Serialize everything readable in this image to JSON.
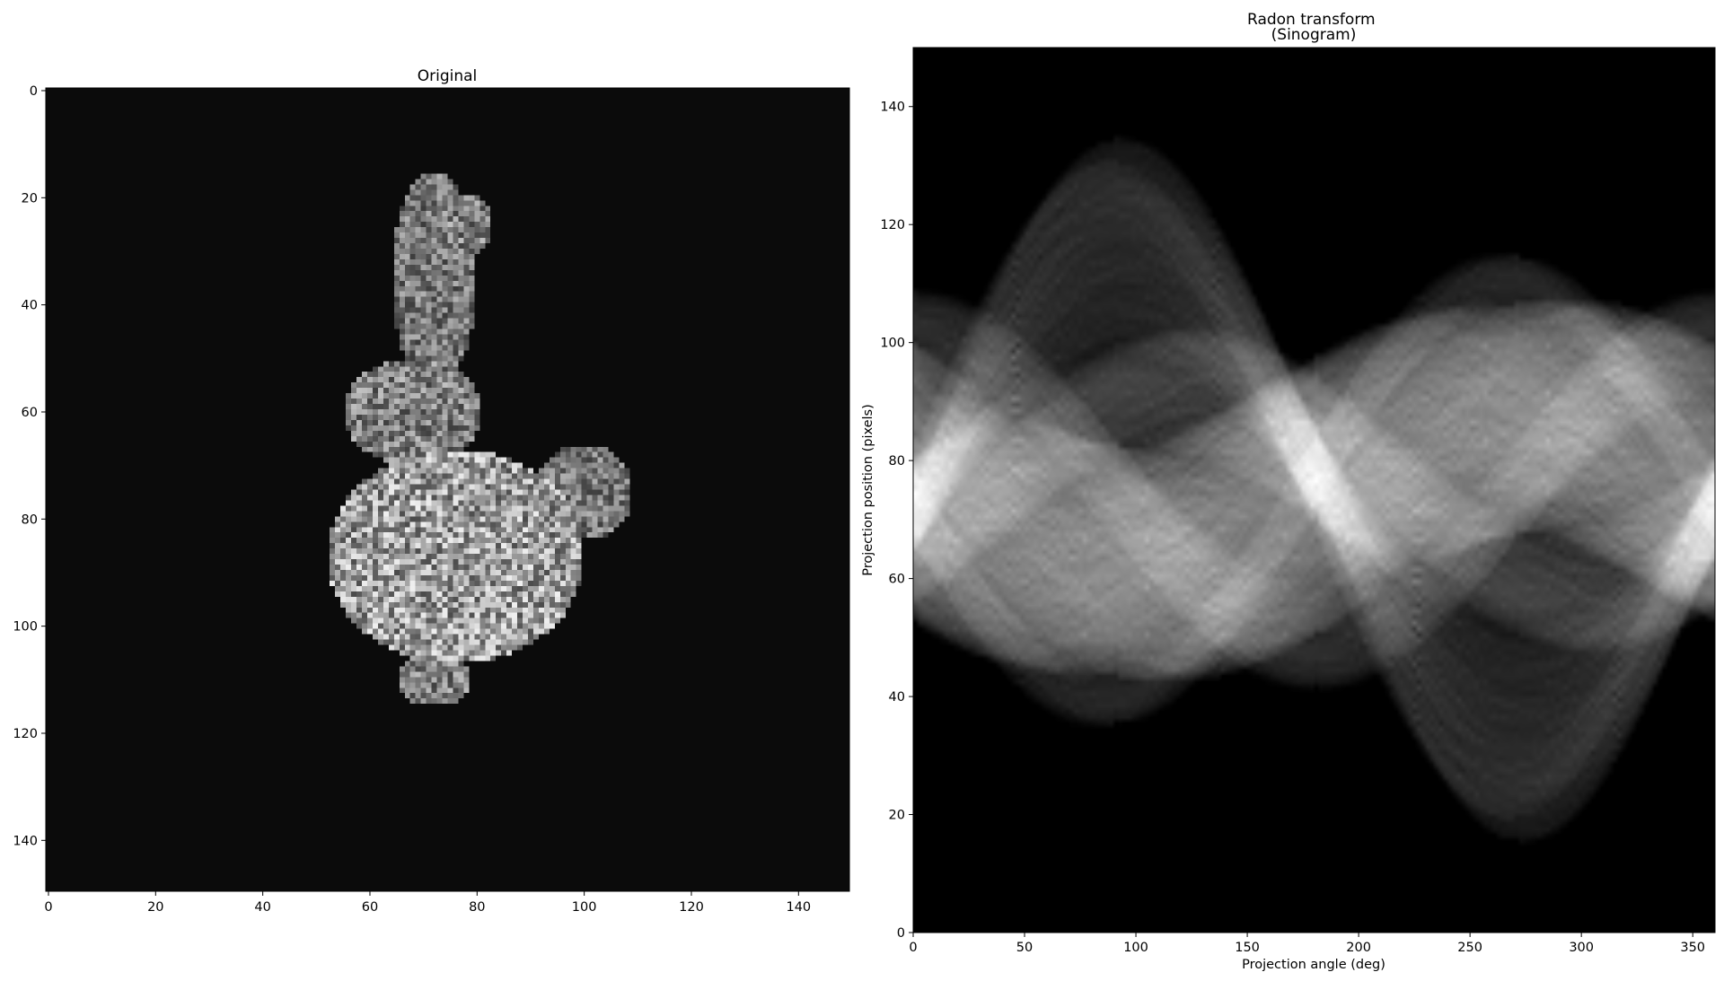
{
  "chart_data": [
    {
      "type": "heatmap",
      "title": "Original",
      "colormap": "gray",
      "xlabel": "",
      "ylabel": "",
      "xlim": [
        0,
        150
      ],
      "ylim": [
        150,
        0
      ],
      "xticks": [
        "0",
        "20",
        "40",
        "60",
        "80",
        "100",
        "120",
        "140"
      ],
      "yticks": [
        "0",
        "20",
        "40",
        "60",
        "80",
        "100",
        "120",
        "140"
      ],
      "background_color": "#0b0b0b",
      "blobs": [
        {
          "cx": 72,
          "cy": 35,
          "rx": 8,
          "ry": 20,
          "intensity": 0.55
        },
        {
          "cx": 78,
          "cy": 25,
          "rx": 5,
          "ry": 6,
          "intensity": 0.6
        },
        {
          "cx": 68,
          "cy": 60,
          "rx": 13,
          "ry": 10,
          "intensity": 0.6
        },
        {
          "cx": 76,
          "cy": 87,
          "rx": 24,
          "ry": 20,
          "intensity": 0.75
        },
        {
          "cx": 100,
          "cy": 75,
          "rx": 9,
          "ry": 9,
          "intensity": 0.55
        },
        {
          "cx": 72,
          "cy": 110,
          "rx": 7,
          "ry": 5,
          "intensity": 0.6
        }
      ]
    },
    {
      "type": "heatmap",
      "title": "Radon transform\n(Sinogram)",
      "colormap": "gray",
      "xlabel": "Projection angle (deg)",
      "ylabel": "Projection position (pixels)",
      "xlim": [
        0,
        360
      ],
      "ylim": [
        0,
        150
      ],
      "xticks": [
        "0",
        "50",
        "100",
        "150",
        "200",
        "250",
        "300",
        "350"
      ],
      "yticks": [
        "0",
        "20",
        "40",
        "60",
        "80",
        "100",
        "120",
        "140"
      ],
      "background_color": "#000000",
      "center": 75,
      "blobs": [
        {
          "cx": 72,
          "cy": 35,
          "intensity": 0.55
        },
        {
          "cx": 78,
          "cy": 25,
          "intensity": 0.6
        },
        {
          "cx": 68,
          "cy": 60,
          "intensity": 0.6
        },
        {
          "cx": 76,
          "cy": 87,
          "intensity": 0.75
        },
        {
          "cx": 100,
          "cy": 75,
          "intensity": 0.55
        },
        {
          "cx": 72,
          "cy": 110,
          "intensity": 0.6
        }
      ]
    }
  ]
}
